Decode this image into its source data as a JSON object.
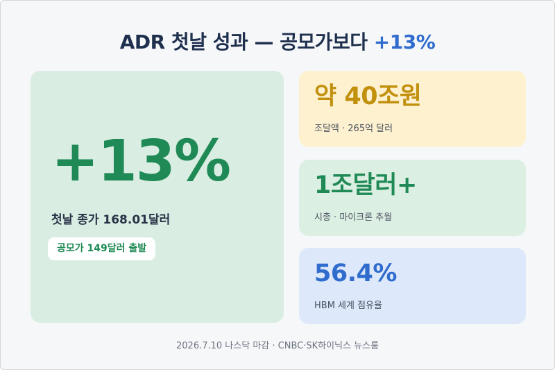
{
  "colors": {
    "background": "#f6f7f9",
    "title": "#1f2f4e",
    "accent_blue": "#2f6ccd",
    "accent_green": "#1f8a55",
    "accent_gold": "#c2900d",
    "card_green": "#d9ede2",
    "card_yellow": "#fdf1cf",
    "card_blue": "#dde8fa"
  },
  "header": {
    "title_main": "ADR 첫날 성과 — 공모가보다 ",
    "title_accent": "+13%"
  },
  "highlight": {
    "value": "+13%",
    "close_text": "첫날 종가 168.01달러",
    "ipo_pill": "공모가 149달러 출발"
  },
  "stats": [
    {
      "value": "약 40조원",
      "label": "조달액 · 265억 달러"
    },
    {
      "value": "1조달러+",
      "label": "시총 · 마이크론 추월"
    },
    {
      "value": "56.4%",
      "label": "HBM 세계 점유율"
    }
  ],
  "footer": {
    "source": "2026.7.10 나스닥 마감 · CNBC·SK하이닉스 뉴스룸"
  }
}
